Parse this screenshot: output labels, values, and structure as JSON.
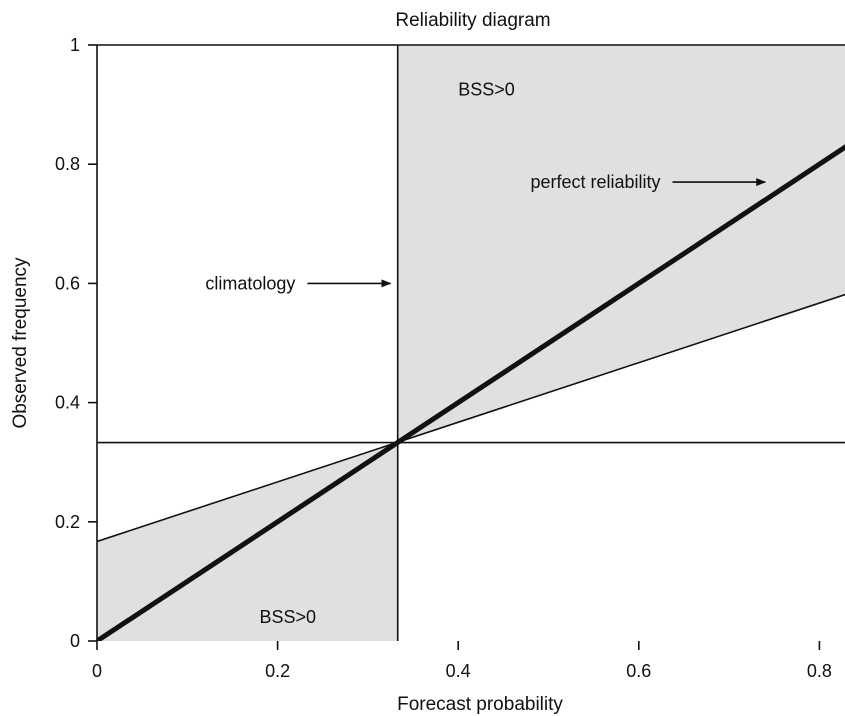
{
  "chart_data": {
    "type": "line",
    "title": "Reliability diagram",
    "xlabel": "Forecast probability",
    "ylabel": "Observed frequency",
    "xlim": [
      0,
      1
    ],
    "ylim": [
      0,
      1
    ],
    "xticks": [
      0,
      0.2,
      0.4,
      0.6,
      0.8
    ],
    "yticks": [
      0,
      0.2,
      0.4,
      0.6,
      0.8,
      1
    ],
    "xtick_labels": [
      "0",
      "0.2",
      "0.4",
      "0.6",
      "0.8"
    ],
    "ytick_labels": [
      "0",
      "0.2",
      "0.4",
      "0.6",
      "0.8",
      "1"
    ],
    "grid": false,
    "climatology": 0.333,
    "series": [
      {
        "name": "perfect reliability",
        "x": [
          0,
          1
        ],
        "y": [
          0,
          1
        ]
      },
      {
        "x": [
          0,
          1
        ],
        "y": [
          0.167,
          0.667
        ]
      },
      {
        "name": "climatology",
        "x": [
          0.333,
          0.333
        ],
        "y": [
          0,
          1
        ]
      },
      {
        "x": [
          0,
          1
        ],
        "y": [
          0.333,
          0.333
        ]
      }
    ],
    "shaded_regions": [
      {
        "label": "BSS>0",
        "polygon": [
          [
            0.333,
            0.333
          ],
          [
            0.333,
            1
          ],
          [
            1,
            1
          ],
          [
            1,
            0.667
          ]
        ]
      },
      {
        "label": "BSS>0",
        "polygon": [
          [
            0,
            0
          ],
          [
            0,
            0.167
          ],
          [
            0.333,
            0.333
          ],
          [
            0.333,
            0
          ]
        ]
      }
    ],
    "annotations": [
      {
        "text": "BSS>0",
        "x": 0.4,
        "y": 0.925
      },
      {
        "text": "BSS>0",
        "x": 0.18,
        "y": 0.04
      },
      {
        "text": "perfect reliability",
        "x": 0.48,
        "y": 0.77,
        "arrow_to": [
          0.74,
          0.77
        ]
      },
      {
        "text": "climatology",
        "x": 0.12,
        "y": 0.6,
        "arrow_to": [
          0.325,
          0.6
        ]
      }
    ],
    "colors": {
      "shade": "#e0e0e0",
      "line": "#111111"
    }
  }
}
